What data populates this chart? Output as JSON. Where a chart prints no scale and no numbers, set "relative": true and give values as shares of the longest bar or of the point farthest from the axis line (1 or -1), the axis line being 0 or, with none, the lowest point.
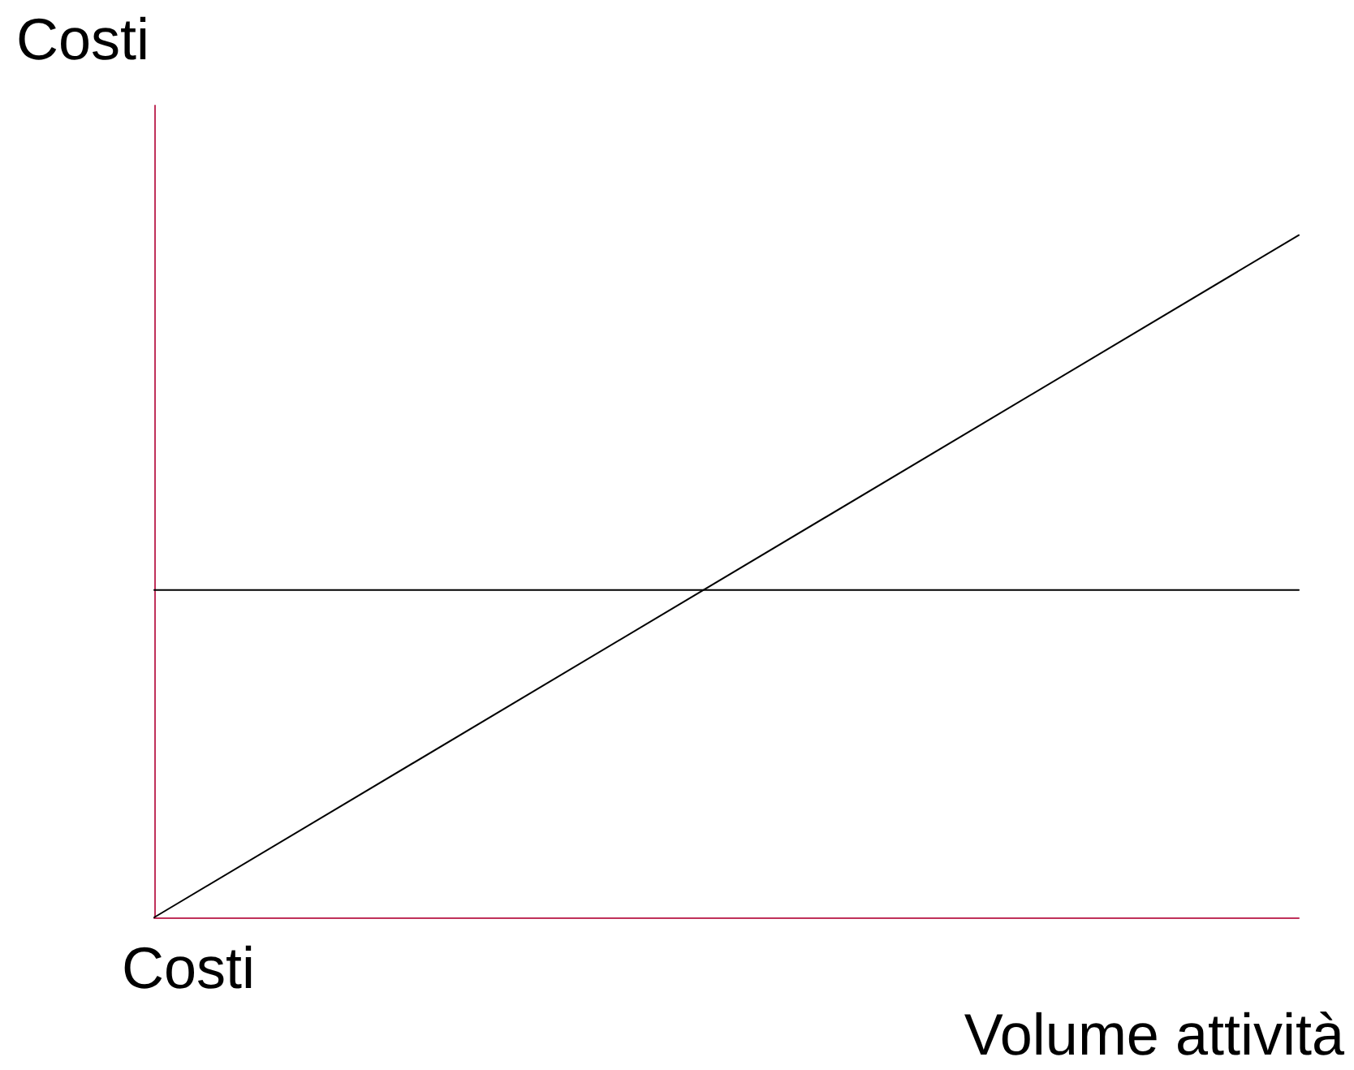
{
  "chart_data": {
    "type": "line",
    "relative": true,
    "ylabel": "Costi",
    "xlabel": "Volume attività",
    "annotations": [
      "Costi"
    ],
    "categories": [
      null,
      null
    ],
    "series": [
      {
        "color": "#000000",
        "values": [
          0,
          1
        ]
      },
      {
        "color": "#000000",
        "values": [
          0.48,
          0.48
        ]
      }
    ],
    "marker": "none",
    "line_style": "solid"
  }
}
